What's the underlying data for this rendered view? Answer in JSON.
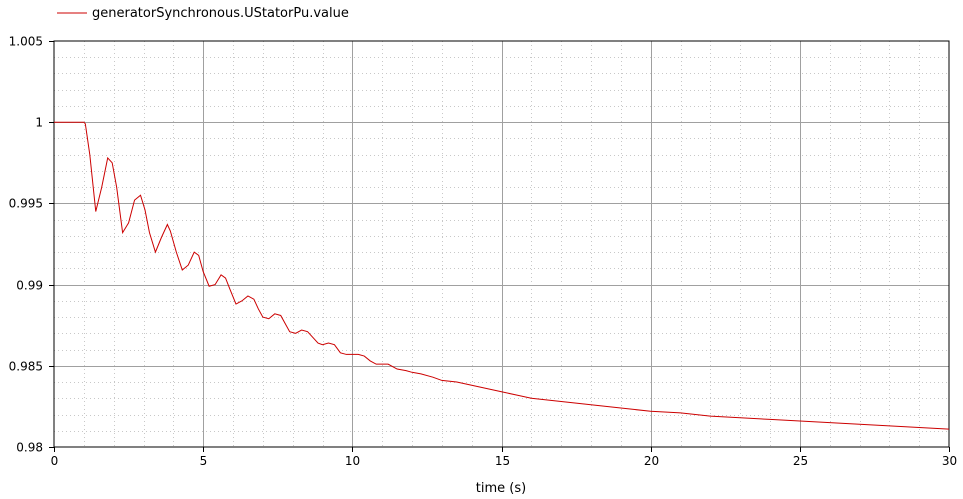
{
  "chart_data": {
    "type": "line",
    "title": "",
    "xlabel": "time (s)",
    "ylabel": "",
    "xlim": [
      0,
      30
    ],
    "ylim": [
      0.98,
      1.005
    ],
    "grid": true,
    "legend_position": "top-left",
    "x_ticks": [
      0,
      5,
      10,
      15,
      20,
      25,
      30
    ],
    "x_tick_labels": [
      "0",
      "5",
      "10",
      "15",
      "20",
      "25",
      "30"
    ],
    "y_ticks": [
      0.98,
      0.985,
      0.99,
      0.995,
      1,
      1.005
    ],
    "y_tick_labels": [
      "0.98",
      "0.985",
      "0.99",
      "0.995",
      "1",
      "1.005"
    ],
    "series": [
      {
        "name": "generatorSynchronous.UStatorPu.value",
        "color": "#cc0000",
        "x": [
          0,
          1.0,
          1.05,
          1.2,
          1.4,
          1.6,
          1.8,
          1.95,
          2.1,
          2.3,
          2.5,
          2.7,
          2.9,
          3.05,
          3.2,
          3.4,
          3.6,
          3.8,
          3.9,
          4.1,
          4.3,
          4.5,
          4.7,
          4.85,
          5.0,
          5.2,
          5.4,
          5.6,
          5.75,
          5.9,
          6.1,
          6.3,
          6.5,
          6.7,
          6.85,
          7.0,
          7.2,
          7.4,
          7.6,
          7.75,
          7.9,
          8.1,
          8.3,
          8.5,
          8.65,
          8.85,
          9.0,
          9.2,
          9.4,
          9.6,
          9.8,
          10.0,
          10.2,
          10.4,
          10.6,
          10.8,
          11.0,
          11.2,
          11.5,
          11.8,
          12.0,
          12.3,
          12.7,
          13.0,
          13.5,
          14.0,
          14.5,
          15.0,
          15.5,
          16.0,
          16.5,
          17.0,
          17.5,
          18.0,
          18.5,
          19.0,
          20.0,
          21.0,
          22.0,
          23.0,
          24.0,
          25.0,
          26.0,
          27.0,
          28.0,
          29.0,
          30.0
        ],
        "values": [
          1.0,
          1.0,
          0.9999,
          0.998,
          0.9945,
          0.996,
          0.9978,
          0.9975,
          0.996,
          0.9932,
          0.9938,
          0.9952,
          0.9955,
          0.9946,
          0.9932,
          0.992,
          0.9929,
          0.9937,
          0.9933,
          0.992,
          0.9909,
          0.9912,
          0.992,
          0.9918,
          0.9908,
          0.9899,
          0.99,
          0.9906,
          0.9904,
          0.9897,
          0.9888,
          0.989,
          0.9893,
          0.9891,
          0.9885,
          0.988,
          0.9879,
          0.9882,
          0.9881,
          0.9876,
          0.9871,
          0.987,
          0.9872,
          0.9871,
          0.9868,
          0.9864,
          0.9863,
          0.9864,
          0.9863,
          0.9858,
          0.9857,
          0.9857,
          0.9857,
          0.9856,
          0.9853,
          0.9851,
          0.9851,
          0.9851,
          0.9848,
          0.9847,
          0.9846,
          0.9845,
          0.9843,
          0.9841,
          0.984,
          0.9838,
          0.9836,
          0.9834,
          0.9832,
          0.983,
          0.9829,
          0.9828,
          0.9827,
          0.9826,
          0.9825,
          0.9824,
          0.9822,
          0.9821,
          0.9819,
          0.9818,
          0.9817,
          0.9816,
          0.9815,
          0.9814,
          0.9813,
          0.9812,
          0.9811
        ]
      }
    ]
  }
}
